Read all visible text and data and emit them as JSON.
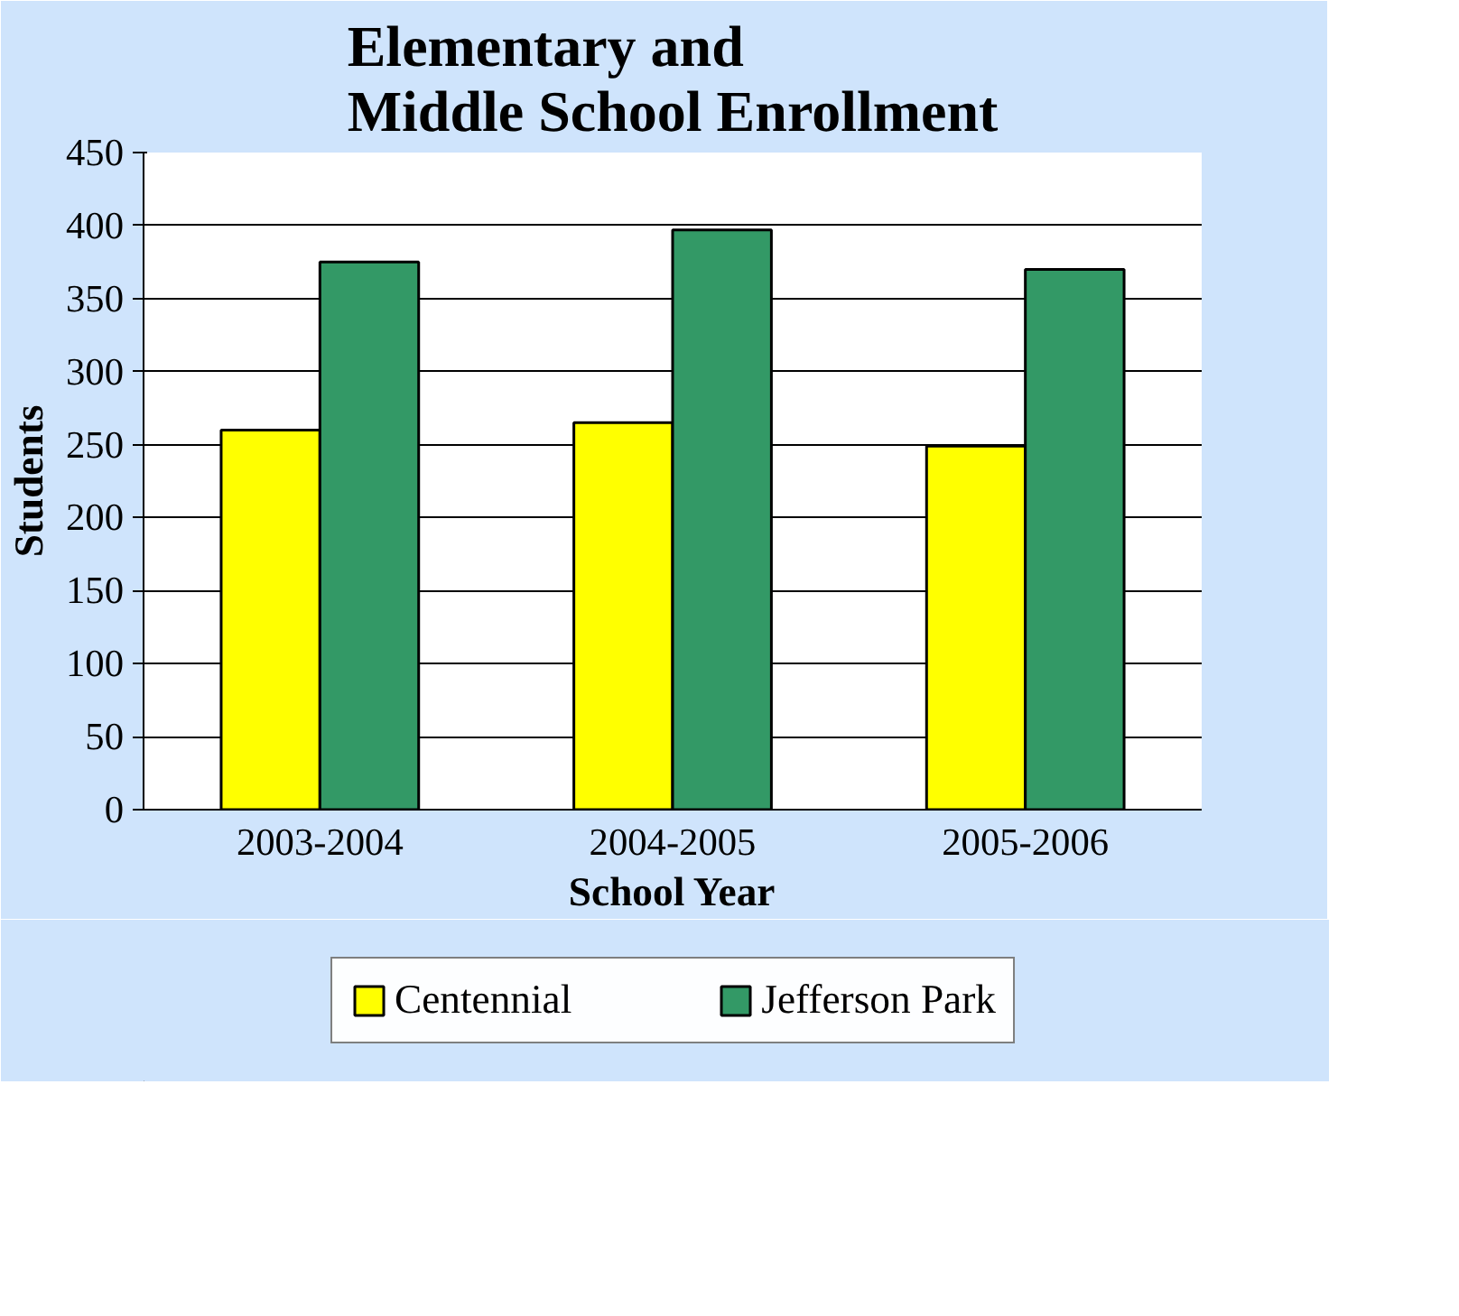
{
  "chart_data": {
    "type": "bar",
    "title": "Elementary and\nMiddle School Enrollment",
    "xlabel": "School Year",
    "ylabel": "Students",
    "categories": [
      "2003-2004",
      "2004-2005",
      "2005-2006"
    ],
    "series": [
      {
        "name": "Centennial",
        "color": "#ffff00",
        "values": [
          260,
          265,
          249
        ]
      },
      {
        "name": "Jefferson Park",
        "color": "#339966",
        "values": [
          375,
          397,
          370
        ]
      }
    ],
    "ylim": [
      0,
      450
    ],
    "yticks": [
      0,
      50,
      100,
      150,
      200,
      250,
      300,
      350,
      400,
      450
    ],
    "grid": "y",
    "legend": "bottom"
  }
}
